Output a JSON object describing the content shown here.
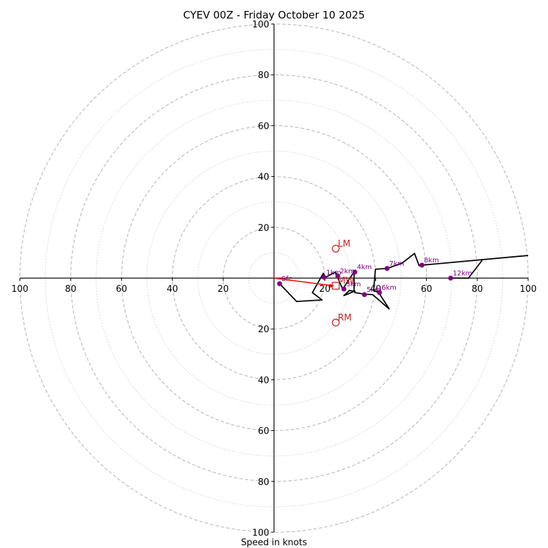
{
  "chart_data": {
    "type": "line",
    "subtype": "hodograph",
    "title": "CYEV 00Z - Friday October 10 2025",
    "xlabel": "Speed in knots",
    "ylabel": "",
    "xlim": [
      -100,
      100
    ],
    "ylim": [
      -100,
      100
    ],
    "x_ticks": [
      100,
      80,
      60,
      40,
      20,
      20,
      40,
      60,
      80,
      100
    ],
    "x_tick_values": [
      -100,
      -80,
      -60,
      -40,
      -20,
      20,
      40,
      60,
      80,
      100
    ],
    "y_ticks": [
      100,
      80,
      60,
      40,
      20,
      20,
      40,
      60,
      80,
      100
    ],
    "y_tick_values": [
      100,
      80,
      60,
      40,
      20,
      -20,
      -40,
      -60,
      -80,
      -100
    ],
    "rings_major": [
      20,
      40,
      60,
      80,
      100
    ],
    "rings_minor": [
      10,
      30,
      50,
      70,
      90
    ],
    "colors": {
      "trace": "#000000",
      "height_markers": "#800080",
      "storm_motion": "#c0282a",
      "mean_wind_vector": "#ff0000",
      "rings": "#bdbdbd"
    },
    "trace": {
      "name": "hodograph",
      "u": [
        2.2,
        8.9,
        18.9,
        15.1,
        19.4,
        20.2,
        24.3,
        24.8,
        27.0,
        31.5,
        31.5,
        29.6,
        27.5,
        31.8,
        31.8,
        35.6,
        38.8,
        45.3,
        41.2,
        39.2,
        39.9,
        44.5,
        50.4,
        55.3,
        57.1,
        58.2,
        100
      ],
      "v": [
        -2.2,
        -9.2,
        -8.6,
        -5.7,
        1.9,
        0.3,
        2.4,
        0.8,
        -4.3,
        2.4,
        -5.1,
        -4.9,
        -6.9,
        -5.1,
        -5.7,
        -6.3,
        -6.5,
        -12.1,
        -5.7,
        -4.9,
        3.5,
        3.8,
        5.9,
        9.7,
        4.9,
        5.1,
        8.9
      ]
    },
    "branch": {
      "name": "upper-level",
      "u": [
        69.5,
        76.5,
        81.9
      ],
      "v": [
        0,
        0,
        7.0
      ]
    },
    "height_markers": [
      {
        "label": "Sfc",
        "u": 2.2,
        "v": -2.2
      },
      {
        "label": "1km",
        "u": 19.7,
        "v": 0.3
      },
      {
        "label": "2km",
        "u": 25.1,
        "v": 0.8
      },
      {
        "label": "3km",
        "u": 27.5,
        "v": -4.3
      },
      {
        "label": "4km",
        "u": 31.8,
        "v": 2.4
      },
      {
        "label": "5km",
        "u": 35.6,
        "v": -6.5
      },
      {
        "label": "6km",
        "u": 41.5,
        "v": -5.7
      },
      {
        "label": "7km",
        "u": 44.5,
        "v": 3.8
      },
      {
        "label": "8km",
        "u": 58.2,
        "v": 5.1
      },
      {
        "label": "12km",
        "u": 69.5,
        "v": 0
      }
    ],
    "storm_motions": [
      {
        "label": "LM",
        "u": 24.3,
        "v": 11.6,
        "marker": "circle"
      },
      {
        "label": "RM",
        "u": 24.3,
        "v": -17.5,
        "marker": "circle"
      },
      {
        "label": "MW",
        "u": 24.3,
        "v": -3.0,
        "marker": "square"
      }
    ],
    "mean_wind_vector": {
      "from_u": 0,
      "from_v": 0,
      "to_u": 23.7,
      "to_v": -3.0
    }
  }
}
